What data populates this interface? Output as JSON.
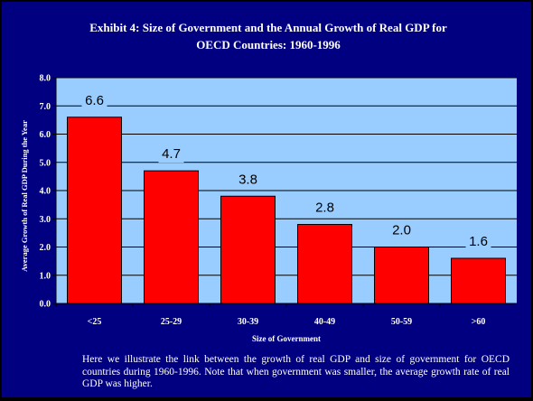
{
  "title_line1": "Exhibit 4: Size of Government and the Annual Growth of Real GDP for",
  "title_line2": "OECD Countries:  1960-1996",
  "caption": "Here we illustrate the link between the growth of real GDP and size of government for OECD countries during 1960-1996.  Note that when government was smaller, the average growth rate of real GDP was higher.",
  "colors": {
    "background": "#000080",
    "plot_area": "#99CCFF",
    "bar": "#FF0000"
  },
  "chart_data": {
    "type": "bar",
    "title": "Exhibit 4: Size of Government and the Annual Growth of Real GDP for OECD Countries:  1960-1996",
    "categories": [
      "<25",
      "25-29",
      "30-39",
      "40-49",
      "50-59",
      ">60"
    ],
    "values": [
      6.6,
      4.7,
      3.8,
      2.8,
      2.0,
      1.6
    ],
    "data_labels": [
      "6.6",
      "4.7",
      "3.8",
      "2.8",
      "2.0",
      "1.6"
    ],
    "xlabel": "Size of Government",
    "ylabel": "Average Growth of Real GDP During the Year",
    "ylim": [
      0,
      8
    ],
    "yticks": [
      "0.0",
      "1.0",
      "2.0",
      "3.0",
      "4.0",
      "5.0",
      "6.0",
      "7.0",
      "8.0"
    ],
    "grid": true,
    "legend": "none"
  }
}
